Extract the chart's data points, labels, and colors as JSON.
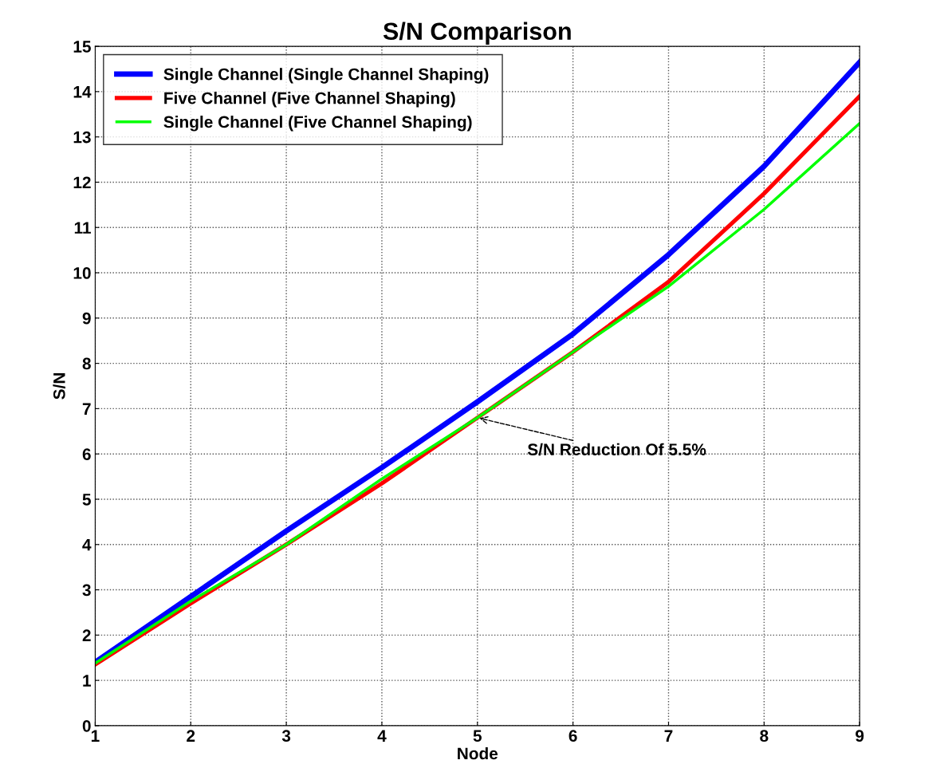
{
  "chart_data": {
    "type": "line",
    "title": "S/N Comparison",
    "xlabel": "Node",
    "ylabel": "S/N",
    "x": [
      1,
      2,
      3,
      4,
      5,
      6,
      7,
      8,
      9
    ],
    "series": [
      {
        "name": "Single Channel (Single Channel Shaping)",
        "color": "#0000ff",
        "values": [
          1.4,
          2.85,
          4.3,
          5.7,
          7.15,
          8.65,
          10.4,
          12.35,
          14.65
        ]
      },
      {
        "name": "Five Channel (Five Channel Shaping)",
        "color": "#ff0000",
        "values": [
          1.35,
          2.7,
          4.0,
          5.35,
          6.8,
          8.25,
          9.8,
          11.75,
          13.9
        ]
      },
      {
        "name": "Single Channel (Five Channel Shaping)",
        "color": "#00ff00",
        "values": [
          1.38,
          2.75,
          4.0,
          5.45,
          6.8,
          8.25,
          9.7,
          11.4,
          13.3
        ]
      }
    ],
    "xlim": [
      1,
      9
    ],
    "xticks": [
      1,
      2,
      3,
      4,
      5,
      6,
      7,
      8,
      9
    ],
    "ylim": [
      0,
      15
    ],
    "yticks": [
      0,
      1,
      2,
      3,
      4,
      5,
      6,
      7,
      8,
      9,
      10,
      11,
      12,
      13,
      14,
      15
    ],
    "grid": true,
    "legend": "top left",
    "line_style": "solid",
    "annotations": [
      {
        "text": "S/N Reduction Of 5.5%",
        "x": 5,
        "y": 6.8
      }
    ]
  }
}
